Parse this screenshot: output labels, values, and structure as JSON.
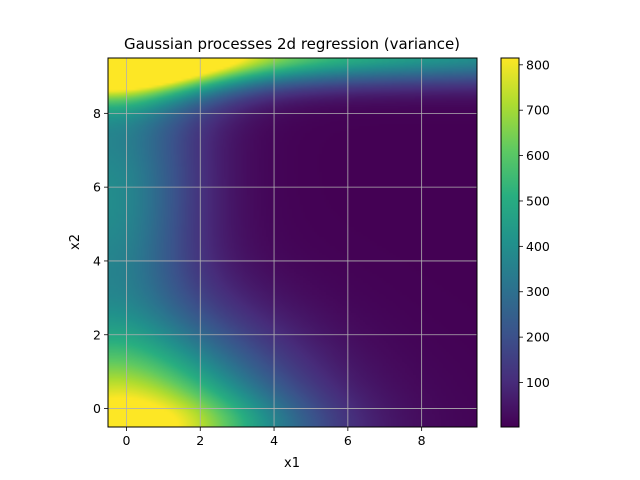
{
  "chart_data": {
    "type": "heatmap",
    "title": "Gaussian processes 2d regression (variance)",
    "xlabel": "x1",
    "ylabel": "x2",
    "xlim": [
      -0.5,
      9.5
    ],
    "ylim": [
      -0.5,
      9.5
    ],
    "xticks": [
      0,
      2,
      4,
      6,
      8
    ],
    "yticks": [
      0,
      2,
      4,
      6,
      8
    ],
    "grid": true,
    "colormap": "viridis",
    "colorbar": {
      "range": [
        2,
        815
      ],
      "ticks": [
        100,
        200,
        300,
        400,
        500,
        600,
        700,
        800
      ]
    },
    "field_samples": [
      {
        "x": 0,
        "y": 9.5,
        "value": 810
      },
      {
        "x": 0,
        "y": 0,
        "value": 760
      },
      {
        "x": 1.5,
        "y": 9.5,
        "value": 630
      },
      {
        "x": 0,
        "y": 8,
        "value": 580
      },
      {
        "x": 0,
        "y": 2,
        "value": 540
      },
      {
        "x": 0,
        "y": 5,
        "value": 330
      },
      {
        "x": 1.5,
        "y": 5,
        "value": 150
      },
      {
        "x": 3,
        "y": 0,
        "value": 240
      },
      {
        "x": 5,
        "y": 9.5,
        "value": 430
      },
      {
        "x": 5,
        "y": 5,
        "value": 8
      },
      {
        "x": 8,
        "y": 9.5,
        "value": 450
      },
      {
        "x": 8,
        "y": 2,
        "value": 5
      }
    ]
  }
}
